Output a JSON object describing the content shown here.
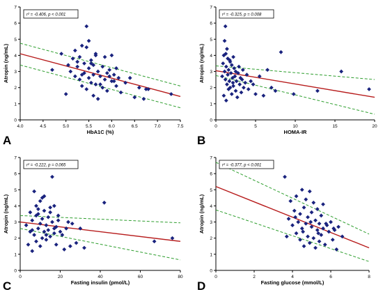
{
  "colors": {
    "point": "#1a237e",
    "regression": "#b71c1c",
    "ci": "#2e9e2e",
    "axis": "#000000"
  },
  "chart_data": [
    {
      "panel_letter": "A",
      "type": "scatter",
      "xlabel": "HbA1C (%)",
      "ylabel": "Atropin (ng/mL)",
      "annotation": "r² = -0.406,  p < 0.001",
      "xlim": [
        4.0,
        7.5
      ],
      "ylim": [
        0,
        7
      ],
      "xticks": [
        4.0,
        4.5,
        5.0,
        5.5,
        6.0,
        6.5,
        7.0,
        7.5
      ],
      "xtick_labels": [
        "4.0",
        "4.5",
        "5.0",
        "5.5",
        "6.0",
        "6.5",
        "7.0",
        "7.5"
      ],
      "yticks": [
        0,
        1,
        2,
        3,
        4,
        5,
        6,
        7
      ],
      "ytick_labels": [
        "0",
        "1",
        "2",
        "3",
        "4",
        "5",
        "6",
        "7"
      ],
      "regression": {
        "x": [
          4.0,
          7.5
        ],
        "y": [
          4.1,
          1.45
        ]
      },
      "ci_upper": {
        "x": [
          4.0,
          7.5
        ],
        "y": [
          4.75,
          2.1
        ]
      },
      "ci_lower": {
        "x": [
          4.0,
          7.5
        ],
        "y": [
          3.4,
          0.75
        ]
      },
      "points": {
        "x": [
          4.7,
          4.9,
          5.0,
          5.05,
          5.1,
          5.15,
          5.2,
          5.2,
          5.25,
          5.3,
          5.3,
          5.35,
          5.35,
          5.4,
          5.4,
          5.45,
          5.45,
          5.5,
          5.5,
          5.5,
          5.55,
          5.55,
          5.6,
          5.6,
          5.6,
          5.65,
          5.65,
          5.7,
          5.7,
          5.75,
          5.8,
          5.8,
          5.85,
          5.9,
          5.9,
          5.95,
          6.0,
          6.0,
          6.05,
          6.1,
          6.1,
          6.15,
          6.2,
          6.3,
          6.4,
          6.5,
          6.6,
          6.7,
          6.75,
          6.8,
          7.3,
          5.25,
          5.35,
          5.45,
          5.55,
          5.65,
          5.75,
          5.85,
          5.95,
          6.05
        ],
        "y": [
          3.1,
          4.1,
          1.6,
          3.4,
          3.0,
          3.8,
          2.7,
          4.3,
          3.3,
          2.5,
          3.9,
          2.1,
          4.6,
          2.9,
          3.5,
          5.8,
          1.9,
          2.6,
          3.2,
          4.9,
          2.3,
          3.7,
          1.5,
          2.8,
          3.4,
          2.2,
          4.1,
          1.3,
          3.0,
          2.7,
          2.0,
          3.3,
          2.5,
          1.8,
          2.9,
          3.1,
          2.4,
          4.0,
          2.8,
          2.1,
          3.2,
          2.6,
          1.7,
          2.3,
          2.6,
          1.4,
          2.0,
          1.3,
          1.9,
          1.9,
          1.6,
          3.6,
          2.8,
          4.5,
          3.5,
          4.0,
          2.2,
          3.9,
          2.7,
          2.4
        ]
      }
    },
    {
      "panel_letter": "B",
      "type": "scatter",
      "xlabel": "HOMA-IR",
      "ylabel": "Atropin (ng/mL)",
      "annotation": "r² = -0.315,  p = 0.008",
      "xlim": [
        0,
        20
      ],
      "ylim": [
        0,
        7
      ],
      "xticks": [
        0,
        5,
        10,
        15,
        20
      ],
      "xtick_labels": [
        "0",
        "5",
        "10",
        "15",
        "20"
      ],
      "yticks": [
        0,
        1,
        2,
        3,
        4,
        5,
        6,
        7
      ],
      "ytick_labels": [
        "0",
        "1",
        "2",
        "3",
        "4",
        "5",
        "6",
        "7"
      ],
      "regression": {
        "x": [
          0,
          20
        ],
        "y": [
          3.05,
          1.4
        ]
      },
      "ci_upper": {
        "x": [
          0,
          20
        ],
        "y": [
          3.35,
          2.5
        ]
      },
      "ci_lower": {
        "x": [
          0,
          20
        ],
        "y": [
          2.75,
          0.35
        ]
      },
      "points": {
        "x": [
          0.8,
          0.9,
          1.0,
          1.0,
          1.1,
          1.1,
          1.2,
          1.2,
          1.3,
          1.3,
          1.4,
          1.4,
          1.5,
          1.5,
          1.6,
          1.6,
          1.7,
          1.8,
          1.8,
          1.9,
          2.0,
          2.0,
          2.1,
          2.2,
          2.2,
          2.3,
          2.4,
          2.5,
          2.5,
          2.6,
          2.7,
          2.8,
          2.9,
          3.0,
          3.1,
          3.2,
          3.3,
          3.4,
          3.5,
          3.7,
          3.9,
          4.1,
          4.4,
          4.7,
          5.0,
          5.5,
          6.0,
          6.5,
          7.0,
          7.5,
          8.2,
          9.8,
          12.8,
          15.8,
          19.3,
          1.25,
          1.75,
          2.15
        ],
        "y": [
          2.7,
          3.5,
          4.0,
          1.5,
          3.0,
          4.9,
          2.5,
          5.8,
          1.2,
          3.3,
          2.2,
          4.4,
          2.8,
          3.8,
          1.9,
          3.1,
          2.4,
          3.6,
          2.0,
          2.9,
          1.6,
          3.4,
          2.6,
          3.9,
          2.1,
          3.2,
          2.7,
          1.8,
          3.0,
          2.4,
          1.4,
          2.9,
          3.3,
          2.2,
          2.6,
          1.7,
          2.5,
          3.1,
          2.0,
          2.3,
          2.8,
          1.9,
          2.4,
          2.2,
          1.6,
          2.7,
          1.5,
          3.1,
          2.0,
          1.8,
          4.2,
          1.6,
          1.8,
          3.0,
          1.9,
          4.1,
          3.7,
          2.3
        ]
      }
    },
    {
      "panel_letter": "C",
      "type": "scatter",
      "xlabel": "Fasting insulin (pmol/L)",
      "ylabel": "Atropin (ng/mL)",
      "annotation": "r² = -0.222,  p = 0.065",
      "xlim": [
        0,
        80
      ],
      "ylim": [
        0,
        7
      ],
      "xticks": [
        0,
        20,
        40,
        60,
        80
      ],
      "xtick_labels": [
        "0",
        "20",
        "40",
        "60",
        "80"
      ],
      "yticks": [
        0,
        1,
        2,
        3,
        4,
        5,
        6,
        7
      ],
      "ytick_labels": [
        "0",
        "1",
        "2",
        "3",
        "4",
        "5",
        "6",
        "7"
      ],
      "regression": {
        "x": [
          0,
          80
        ],
        "y": [
          3.0,
          1.8
        ]
      },
      "ci_upper": {
        "x": [
          0,
          80
        ],
        "y": [
          3.4,
          2.95
        ]
      },
      "ci_lower": {
        "x": [
          0,
          80
        ],
        "y": [
          2.6,
          0.65
        ]
      },
      "points": {
        "x": [
          3,
          4,
          5,
          5,
          6,
          6,
          7,
          7,
          8,
          8,
          8,
          9,
          9,
          10,
          10,
          10,
          11,
          11,
          12,
          12,
          12,
          13,
          13,
          14,
          14,
          15,
          15,
          16,
          16,
          17,
          17,
          18,
          18,
          19,
          20,
          21,
          22,
          23,
          24,
          25,
          26,
          28,
          30,
          32,
          42,
          67,
          76,
          6,
          9,
          11,
          13,
          15,
          17,
          19
        ],
        "y": [
          2.8,
          1.6,
          2.4,
          3.6,
          1.2,
          3.1,
          4.9,
          2.2,
          3.4,
          1.8,
          4.0,
          2.6,
          3.8,
          2.9,
          1.5,
          4.3,
          3.2,
          2.0,
          3.7,
          2.4,
          4.6,
          2.8,
          1.9,
          3.3,
          2.5,
          3.6,
          2.1,
          5.8,
          3.0,
          2.3,
          4.0,
          2.7,
          1.6,
          3.1,
          2.4,
          2.2,
          1.3,
          2.6,
          3.0,
          1.5,
          2.9,
          1.7,
          2.6,
          1.4,
          4.2,
          1.8,
          2.0,
          2.5,
          3.5,
          4.5,
          2.2,
          3.9,
          2.6,
          3.4
        ]
      }
    },
    {
      "panel_letter": "D",
      "type": "scatter",
      "xlabel": "Fasting glucose (mmol/L)",
      "ylabel": "Atropin (ng/mL)",
      "annotation": "r² = -0.377,  p < 0.001",
      "xlim": [
        0,
        8
      ],
      "ylim": [
        0,
        7
      ],
      "xticks": [
        0,
        2,
        4,
        6,
        8
      ],
      "xtick_labels": [
        "0",
        "2",
        "4",
        "6",
        "8"
      ],
      "yticks": [
        0,
        1,
        2,
        3,
        4,
        5,
        6,
        7
      ],
      "ytick_labels": [
        "0",
        "1",
        "2",
        "3",
        "4",
        "5",
        "6",
        "7"
      ],
      "regression": {
        "x": [
          0,
          8
        ],
        "y": [
          5.2,
          1.4
        ]
      },
      "ci_upper": {
        "x": [
          0,
          8
        ],
        "y": [
          6.7,
          2.25
        ]
      },
      "ci_lower": {
        "x": [
          0,
          8
        ],
        "y": [
          3.75,
          0.55
        ]
      },
      "points": {
        "x": [
          3.6,
          3.8,
          3.9,
          4.0,
          4.1,
          4.2,
          4.2,
          4.3,
          4.4,
          4.4,
          4.5,
          4.5,
          4.6,
          4.6,
          4.7,
          4.7,
          4.8,
          4.8,
          4.9,
          4.9,
          5.0,
          5.0,
          5.1,
          5.1,
          5.2,
          5.2,
          5.3,
          5.3,
          5.4,
          5.4,
          5.5,
          5.5,
          5.6,
          5.6,
          5.7,
          5.8,
          5.9,
          6.0,
          6.1,
          6.2,
          6.3,
          6.4,
          6.6,
          3.7,
          4.15,
          4.55,
          4.95,
          5.35,
          5.75,
          6.15
        ],
        "y": [
          5.8,
          3.2,
          4.3,
          2.8,
          3.7,
          2.3,
          4.6,
          3.0,
          1.9,
          3.5,
          2.6,
          5.0,
          1.5,
          3.9,
          2.9,
          4.4,
          2.1,
          3.3,
          1.7,
          4.9,
          2.7,
          3.6,
          2.0,
          4.2,
          1.4,
          3.1,
          2.5,
          3.8,
          1.8,
          2.9,
          3.4,
          2.2,
          2.6,
          4.1,
          1.6,
          2.8,
          2.4,
          3.0,
          1.9,
          2.5,
          1.3,
          2.7,
          2.1,
          2.1,
          3.3,
          2.4,
          3.0,
          2.3,
          2.9,
          2.6
        ]
      }
    }
  ]
}
